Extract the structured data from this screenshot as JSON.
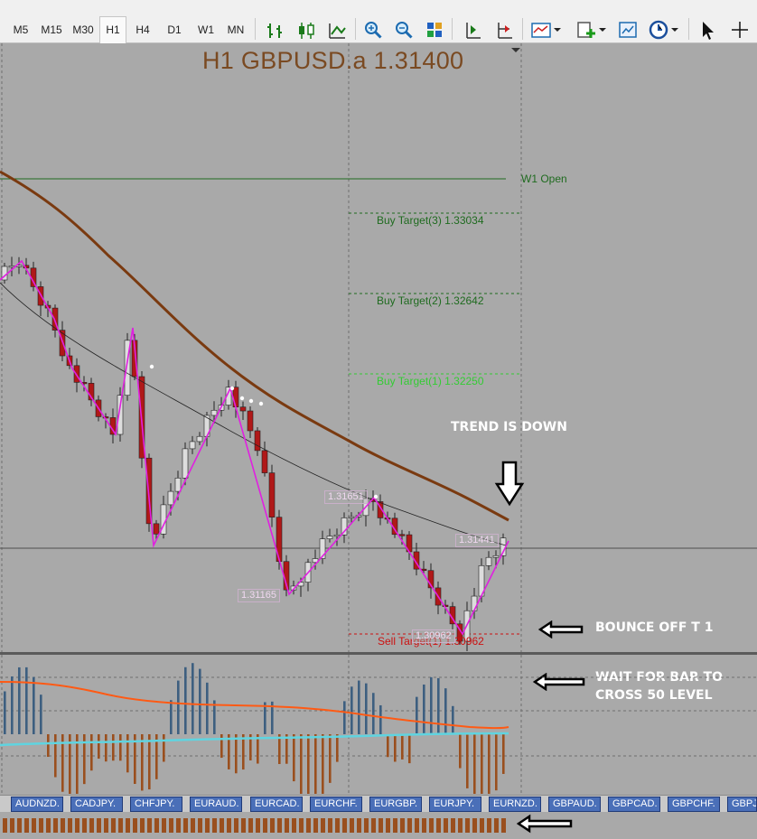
{
  "toolbar": {
    "timeframes": [
      "M5",
      "M15",
      "M30",
      "H1",
      "H4",
      "D1",
      "W1",
      "MN"
    ],
    "active_timeframe": "H1"
  },
  "chart": {
    "title": "H1 GBPUSD.a 1.31400",
    "levels": {
      "w1_open": "W1 Open",
      "buy3": "Buy Target(3) 1.33034",
      "buy2": "Buy Target(2) 1.32642",
      "buy1": "Buy Target(1) 1.32250",
      "sell1": "Sell Target(1) 1.30962"
    },
    "price_labels": {
      "swing_high": "1.31651",
      "swing_low": "1.31165",
      "current": "1.31441",
      "bottom": "1.30962"
    },
    "annotations": {
      "trend": "TREND IS DOWN",
      "bounce": "BOUNCE OFF T 1",
      "wait_line1": "WAIT FOR BAR TO",
      "wait_line2": "CROSS 50 LEVEL"
    },
    "colors": {
      "background": "#a9a9a9",
      "ma_slow": "#7a3a10",
      "zigzag": "#e020e0",
      "buy_levels": "#1f6b1f",
      "buy_target1": "#33cc33",
      "sell_target": "#cc1111",
      "indicator_bull": "#3d5f80",
      "indicator_bear": "#9a4f1e",
      "signal_line": "#ff5a14",
      "base_line": "#5fd4e0"
    }
  },
  "symbol_tabs": [
    "AUDNZD.",
    "CADJPY.",
    "CHFJPY.",
    "EURAUD.",
    "EURCAD.",
    "EURCHF.",
    "EURGBP.",
    "EURJPY.",
    "EURNZD.",
    "GBPAUD.",
    "GBPCAD.",
    "GBPCHF.",
    "GBPJ"
  ]
}
